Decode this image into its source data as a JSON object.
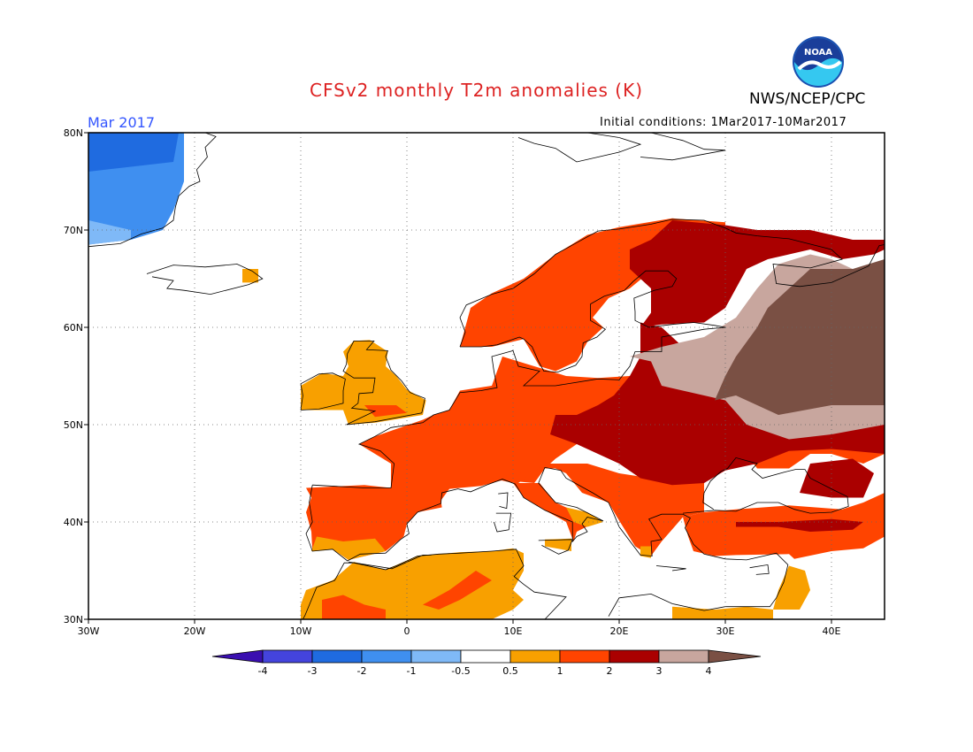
{
  "title": "CFSv2 monthly T2m anomalies (K)",
  "org": "NWS/NCEP/CPC",
  "logo_text": "NOAA",
  "period": "Mar 2017",
  "initial_conditions": "Initial conditions: 1Mar2017-10Mar2017",
  "lat_labels": [
    "80N",
    "70N",
    "60N",
    "50N",
    "40N",
    "30N"
  ],
  "lon_labels": [
    "30W",
    "20W",
    "10W",
    "0",
    "10E",
    "20E",
    "30E",
    "40E"
  ],
  "colorbar": {
    "ticks": [
      "-4",
      "-3",
      "-2",
      "-1",
      "-0.5",
      "0.5",
      "1",
      "2",
      "3",
      "4"
    ],
    "colors": [
      "#3a0fb0",
      "#4444dd",
      "#1f6be0",
      "#3f8ff0",
      "#7fb9f7",
      "#ffffff",
      "#f8a000",
      "#ff4400",
      "#aa0000",
      "#c8a69e",
      "#7a5044"
    ]
  },
  "chart_data": {
    "type": "heatmap",
    "title": "CFSv2 monthly T2m anomalies (K)",
    "period": "Mar 2017",
    "region": {
      "lon_range": [
        -30,
        45
      ],
      "lat_range": [
        30,
        80
      ]
    },
    "levels": [
      -4,
      -3,
      -2,
      -1,
      -0.5,
      0.5,
      1,
      2,
      3,
      4
    ],
    "anomaly_regions": [
      {
        "area": "Greenland east coast",
        "lon": [
          -30,
          -21
        ],
        "lat": [
          69,
          80
        ],
        "anomaly": "-3 to -1"
      },
      {
        "area": "Western Russia / Belarus",
        "lon": [
          28,
          45
        ],
        "lat": [
          50,
          67
        ],
        "anomaly": ">4"
      },
      {
        "area": "Baltic states / NW Russia",
        "lon": [
          22,
          35
        ],
        "lat": [
          52,
          66
        ],
        "anomaly": "3 to 4"
      },
      {
        "area": "Eastern Europe / Ukraine / Romania",
        "lon": [
          16,
          30
        ],
        "lat": [
          43,
          54
        ],
        "anomaly": "2 to 3"
      },
      {
        "area": "Central & Western Europe",
        "lon": [
          -5,
          20
        ],
        "lat": [
          43,
          54
        ],
        "anomaly": "1 to 2"
      },
      {
        "area": "Scandinavia",
        "lon": [
          5,
          30
        ],
        "lat": [
          56,
          71
        ],
        "anomaly": "1 to 2"
      },
      {
        "area": "Turkey",
        "lon": [
          27,
          45
        ],
        "lat": [
          36,
          42
        ],
        "anomaly": "1 to 2"
      },
      {
        "area": "Iberia",
        "lon": [
          -10,
          3
        ],
        "lat": [
          36,
          44
        ],
        "anomaly": "1 to 2"
      },
      {
        "area": "Ireland / UK",
        "lon": [
          -10,
          2
        ],
        "lat": [
          51,
          58
        ],
        "anomaly": "0.5 to 1"
      },
      {
        "area": "North Africa",
        "lon": [
          -10,
          12
        ],
        "lat": [
          30,
          36
        ],
        "anomaly": "0.5 to 2"
      },
      {
        "area": "Mediterranean Sea",
        "lon": [
          0,
          30
        ],
        "lat": [
          32,
          42
        ],
        "anomaly": "-0.5 to 0.5"
      }
    ]
  }
}
